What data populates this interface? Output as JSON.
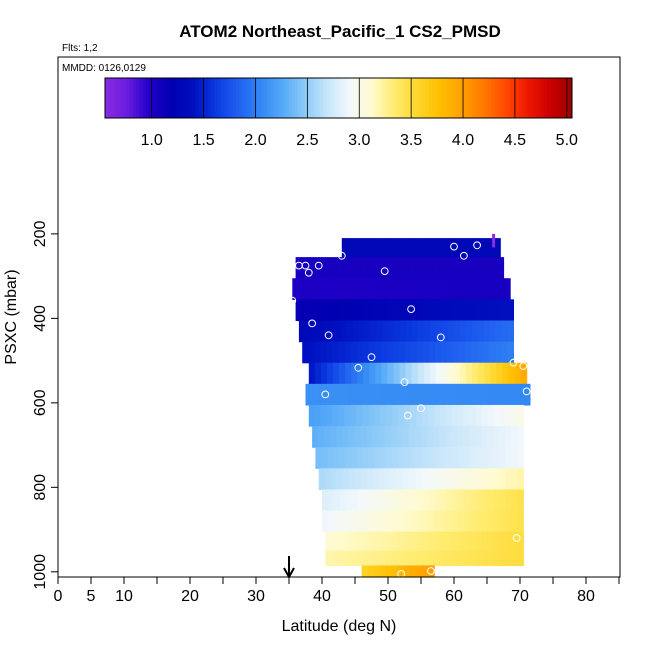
{
  "chart_data": {
    "type": "heatmap",
    "title": "ATOM2 Northeast_Pacific_1 CS2_PMSD",
    "flights_note": "Flts: 1,2",
    "date_note": "MMDD: 0126,0129",
    "xlabel": "Latitude (deg N)",
    "ylabel": "PSXC (mbar)",
    "xlim": [
      0,
      85
    ],
    "ylim": [
      1010,
      50
    ],
    "x_ticks_major": [
      0,
      5,
      10,
      20,
      30,
      40,
      50,
      60,
      70,
      80
    ],
    "x_tick_labels": [
      "0",
      "5",
      "10",
      "20",
      "30",
      "40",
      "50",
      "60",
      "70",
      "80"
    ],
    "x_ticks_minor": [
      15,
      25,
      35,
      45,
      55,
      65,
      75,
      85
    ],
    "y_ticks": [
      200,
      400,
      600,
      800,
      1000
    ],
    "y_tick_labels": [
      "200",
      "400",
      "600",
      "800",
      "1000"
    ],
    "colorbar": {
      "min": 0.55,
      "max": 5.05,
      "ticks": [
        1.0,
        1.5,
        2.0,
        2.5,
        3.0,
        3.5,
        4.0,
        4.5,
        5.0
      ],
      "tick_labels": [
        "1.0",
        "1.5",
        "2.0",
        "2.5",
        "3.0",
        "3.5",
        "4.0",
        "4.5",
        "5.0"
      ],
      "colors": [
        "#8a2be2",
        "#6a1de0",
        "#2200c8",
        "#0000b0",
        "#0010c0",
        "#0a3ae0",
        "#2060f0",
        "#3388f4",
        "#55aaf8",
        "#8ccaf8",
        "#c8e6fa",
        "#f2f8fc",
        "#fffbd0",
        "#ffec70",
        "#ffd830",
        "#ffc000",
        "#ffa200",
        "#ff7a00",
        "#ff4a00",
        "#ee1800",
        "#cc0000",
        "#990000"
      ]
    },
    "layers": [
      {
        "p": 230,
        "lat": [
          43,
          67
        ],
        "v": [
          1.3,
          1.3
        ]
      },
      {
        "p": 280,
        "lat": [
          36,
          67.5
        ],
        "v": [
          1.05,
          1.05
        ]
      },
      {
        "p": 330,
        "lat": [
          35.5,
          68.5
        ],
        "v": [
          1.0,
          1.05
        ]
      },
      {
        "p": 380,
        "lat": [
          36,
          69
        ],
        "v": [
          1.15,
          1.4
        ]
      },
      {
        "p": 430,
        "lat": [
          36.5,
          69
        ],
        "v": [
          1.3,
          1.9
        ]
      },
      {
        "p": 480,
        "lat": [
          37,
          69
        ],
        "v": [
          1.4,
          2.0
        ]
      },
      {
        "p": 530,
        "lat": [
          38,
          71
        ],
        "v": [
          1.45,
          3.9
        ]
      },
      {
        "p": 580,
        "lat": [
          37.5,
          71.5
        ],
        "v": [
          2.1,
          2.05
        ]
      },
      {
        "p": 630,
        "lat": [
          38,
          70.5
        ],
        "v": [
          2.2,
          3.0
        ]
      },
      {
        "p": 680,
        "lat": [
          38.5,
          70.5
        ],
        "v": [
          2.3,
          2.9
        ]
      },
      {
        "p": 730,
        "lat": [
          39,
          70.5
        ],
        "v": [
          2.4,
          2.9
        ]
      },
      {
        "p": 780,
        "lat": [
          39.5,
          70.5
        ],
        "v": [
          2.6,
          3.2
        ]
      },
      {
        "p": 830,
        "lat": [
          40,
          70.5
        ],
        "v": [
          2.8,
          3.45
        ]
      },
      {
        "p": 880,
        "lat": [
          40,
          70.5
        ],
        "v": [
          2.9,
          3.45
        ]
      },
      {
        "p": 930,
        "lat": [
          40.5,
          70.5
        ],
        "v": [
          3.1,
          3.5
        ]
      },
      {
        "p": 970,
        "lat": [
          40.5,
          70.5
        ],
        "v": [
          3.2,
          3.5
        ]
      },
      {
        "p": 1000,
        "lat": [
          46,
          57
        ],
        "v": [
          3.6,
          4.0
        ]
      }
    ],
    "flight_points": [
      [
        43,
        252
      ],
      [
        60,
        230
      ],
      [
        61.5,
        252
      ],
      [
        63.5,
        227
      ],
      [
        36.5,
        275
      ],
      [
        37.5,
        275
      ],
      [
        38,
        292
      ],
      [
        39.5,
        275
      ],
      [
        49.5,
        288
      ],
      [
        35.5,
        358
      ],
      [
        53.5,
        378
      ],
      [
        38.5,
        412
      ],
      [
        41,
        440
      ],
      [
        58,
        445
      ],
      [
        47.5,
        492
      ],
      [
        45.5,
        517
      ],
      [
        52.5,
        551
      ],
      [
        69,
        505
      ],
      [
        70.5,
        513
      ],
      [
        71,
        573
      ],
      [
        40.5,
        580
      ],
      [
        55,
        613
      ],
      [
        53,
        630
      ],
      [
        69.5,
        920
      ],
      [
        52,
        1005
      ],
      [
        56.5,
        998
      ]
    ],
    "marker_down_arrow_lat": 35,
    "marker_bar_lat": 66,
    "marker_bar_p": [
      200,
      232
    ]
  }
}
